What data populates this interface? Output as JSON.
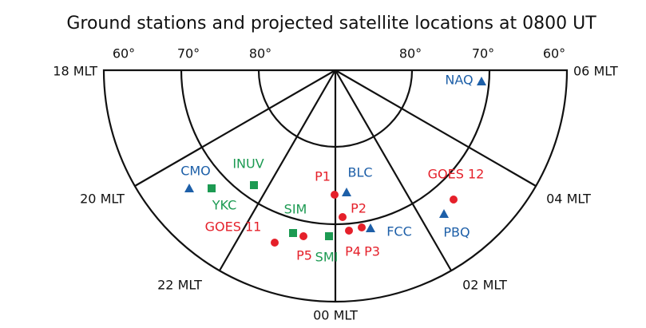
{
  "title": "Ground stations and projected satellite locations at 0800 UT",
  "latitude_labels": [
    "60°",
    "70°",
    "80°",
    "80°",
    "70°",
    "60°"
  ],
  "mlt_labels": [
    "18 MLT",
    "20 MLT",
    "22 MLT",
    "00 MLT",
    "02 MLT",
    "04 MLT",
    "06 MLT"
  ],
  "markers": [
    {
      "label": "NAQ",
      "shape": "triangle",
      "color": "#1d5fa8"
    },
    {
      "label": "CMO",
      "shape": "triangle",
      "color": "#1d5fa8"
    },
    {
      "label": "BLC",
      "shape": "triangle",
      "color": "#1d5fa8"
    },
    {
      "label": "FCC",
      "shape": "triangle",
      "color": "#1d5fa8"
    },
    {
      "label": "PBQ",
      "shape": "triangle",
      "color": "#1d5fa8"
    },
    {
      "label": "INUV",
      "shape": "square",
      "color": "#1c9a52"
    },
    {
      "label": "YKC",
      "shape": "square",
      "color": "#1c9a52"
    },
    {
      "label": "SIM",
      "shape": "square",
      "color": "#1c9a52"
    },
    {
      "label": "SMI",
      "shape": "square",
      "color": "#1c9a52"
    },
    {
      "label": "GOES 12",
      "shape": "circle",
      "color": "#e5202a"
    },
    {
      "label": "P1",
      "shape": "circle",
      "color": "#e5202a"
    },
    {
      "label": "P2",
      "shape": "circle",
      "color": "#e5202a"
    },
    {
      "label": "GOES 11",
      "shape": "circle",
      "color": "#e5202a"
    },
    {
      "label": "P5",
      "shape": "circle",
      "color": "#e5202a"
    },
    {
      "label": "P4",
      "shape": "circle",
      "color": "#e5202a"
    },
    {
      "label": "P3",
      "shape": "circle",
      "color": "#e5202a"
    }
  ]
}
